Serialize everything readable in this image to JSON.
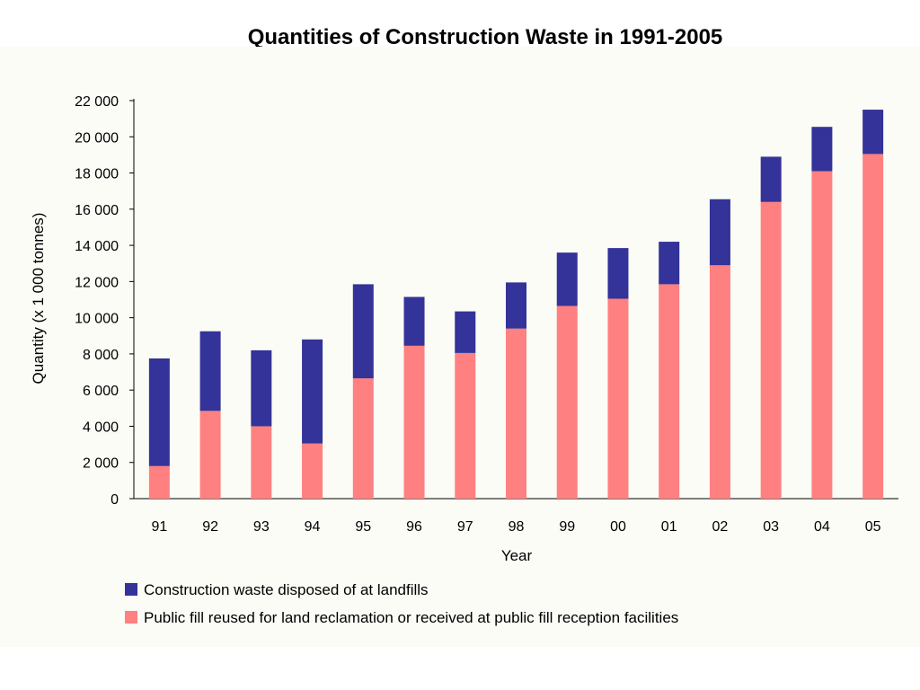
{
  "title": "Quantities of Construction Waste in 1991-2005",
  "chart_data": {
    "type": "bar",
    "stacked": true,
    "xlabel": "Year",
    "ylabel": "Quantity (x 1 000 tonnes)",
    "ylim": [
      0,
      22000
    ],
    "yticks": [
      0,
      2000,
      4000,
      6000,
      8000,
      10000,
      12000,
      14000,
      16000,
      18000,
      20000,
      22000
    ],
    "ytick_labels": [
      "0",
      "2 000",
      "4 000",
      "6 000",
      "8 000",
      "10 000",
      "12 000",
      "14 000",
      "16 000",
      "18 000",
      "20 000",
      "22 000"
    ],
    "categories": [
      "91",
      "92",
      "93",
      "94",
      "95",
      "96",
      "97",
      "98",
      "99",
      "00",
      "01",
      "02",
      "03",
      "04",
      "05"
    ],
    "series": [
      {
        "name": "Public fill reused for land reclamation or received at public fill reception facilities",
        "color": "#ff8080",
        "values": [
          1800,
          4850,
          4000,
          3050,
          6650,
          8450,
          8050,
          9400,
          10650,
          11050,
          11850,
          12900,
          16400,
          18100,
          19050
        ]
      },
      {
        "name": "Construction waste disposed of at landfills",
        "color": "#333399",
        "values": [
          5950,
          4400,
          4200,
          5750,
          5200,
          2700,
          2300,
          2550,
          2950,
          2800,
          2350,
          3650,
          2500,
          2450,
          2450
        ]
      }
    ],
    "legend_order": [
      1,
      0
    ],
    "legend_position": "bottom",
    "grid": false
  }
}
